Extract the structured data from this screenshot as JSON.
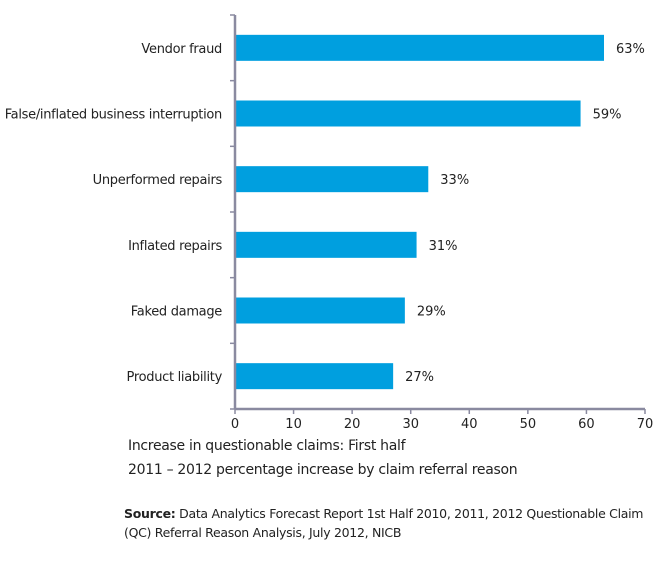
{
  "chart_data": {
    "type": "bar",
    "orientation": "horizontal",
    "categories": [
      "Vendor fraud",
      "False/inflated business interruption",
      "Unperformed repairs",
      "Inflated repairs",
      "Faked damage",
      "Product liability"
    ],
    "values": [
      63,
      59,
      33,
      31,
      29,
      27
    ],
    "data_labels": [
      "63%",
      "59%",
      "33%",
      "31%",
      "29%",
      "27%"
    ],
    "xlim": [
      0,
      70
    ],
    "xticks": [
      0,
      10,
      20,
      30,
      40,
      50,
      60,
      70
    ],
    "grid": false,
    "bar_color": "#009fdf",
    "axis_color": "#8a8aa0",
    "caption_lines": [
      "Increase in questionable claims: First half",
      "2011 – 2012 percentage increase by claim referral reason"
    ]
  },
  "source": {
    "label": "Source:",
    "text": "Data Analytics Forecast Report 1st Half 2010, 2011, 2012 Questionable Claim (QC) Referral Reason Analysis, July 2012, NICB"
  }
}
